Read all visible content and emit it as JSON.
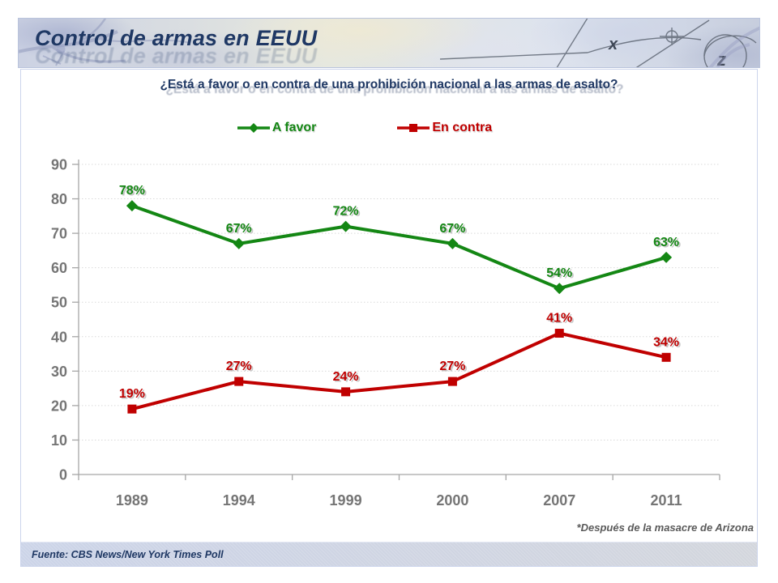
{
  "slide_title": "Control de armas en EEUU",
  "question_title": "¿Está a favor o en contra de una prohibición nacional a las armas de asalto?",
  "footnote": "*Después de la masacre de Arizona",
  "footer_source": "Fuente: CBS News/New York Times Poll",
  "colors": {
    "title_navy": "#1F3864",
    "favor_green": "#148714",
    "contra_red": "#C00000",
    "axis_gray": "#757575",
    "gridline_gray": "#D9D9D9",
    "footnote_gray": "#595959"
  },
  "chart_data": {
    "type": "line",
    "categories": [
      "1989",
      "1994",
      "1999",
      "2000",
      "2007",
      "2011"
    ],
    "series": [
      {
        "name": "A favor",
        "color": "#148714",
        "marker": "diamond",
        "values": [
          78,
          67,
          72,
          67,
          54,
          63
        ],
        "labels": [
          "78%",
          "67%",
          "72%",
          "67%",
          "54%",
          "63%"
        ]
      },
      {
        "name": "En contra",
        "color": "#C00000",
        "marker": "square",
        "values": [
          19,
          27,
          24,
          27,
          41,
          34
        ],
        "labels": [
          "19%",
          "27%",
          "24%",
          "27%",
          "41%",
          "34%"
        ]
      }
    ],
    "ylim": [
      0,
      90
    ],
    "yticks": [
      0,
      10,
      20,
      30,
      40,
      50,
      60,
      70,
      80,
      90
    ],
    "grid": true,
    "legend_position": "top-center"
  }
}
